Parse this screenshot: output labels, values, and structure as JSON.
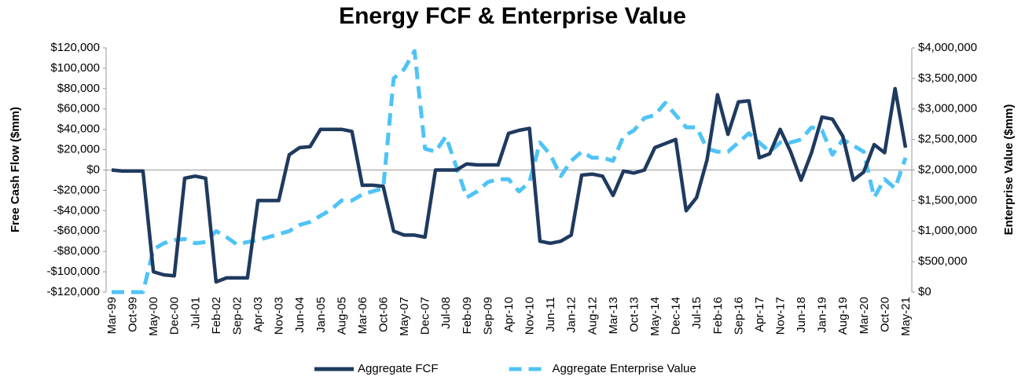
{
  "chart_data": {
    "type": "line",
    "title": "Energy FCF & Enterprise Value",
    "y_label": "Free Cash Flow ($mm)",
    "y2_label": "Enterprise Value ($mm)",
    "categories": [
      "Mar-99",
      null,
      "Oct-99",
      null,
      "May-00",
      null,
      "Dec-00",
      null,
      "Jul-01",
      null,
      "Feb-02",
      null,
      "Sep-02",
      null,
      "Apr-03",
      null,
      "Nov-03",
      null,
      "Jun-04",
      null,
      "Jan-05",
      null,
      "Aug-05",
      null,
      "Mar-06",
      null,
      "Oct-06",
      null,
      "May-07",
      null,
      "Dec-07",
      null,
      "Jul-08",
      null,
      "Feb-09",
      null,
      "Sep-09",
      null,
      "Apr-10",
      null,
      "Nov-10",
      null,
      "Jun-11",
      null,
      "Jan-12",
      null,
      "Aug-12",
      null,
      "Mar-13",
      null,
      "Oct-13",
      null,
      "May-14",
      null,
      "Dec-14",
      null,
      "Jul-15",
      null,
      "Feb-16",
      null,
      "Sep-16",
      null,
      "Apr-17",
      null,
      "Nov-17",
      null,
      "Jun-18",
      null,
      "Jan-19",
      null,
      "Aug-19",
      null,
      "Mar-20",
      null,
      "Oct-20",
      null,
      "May-21"
    ],
    "series": [
      {
        "name": "Aggregate FCF",
        "color": "#1f3a5f",
        "dashed": false,
        "axis": "y",
        "values": [
          0,
          -1000,
          -1000,
          -1000,
          -100000,
          -103000,
          -104000,
          -8000,
          -6000,
          -8000,
          -110000,
          -106000,
          -106000,
          -106000,
          -30000,
          -30000,
          -30000,
          15000,
          22000,
          23000,
          40000,
          40000,
          40000,
          38000,
          -15000,
          -15000,
          -16000,
          -60000,
          -64000,
          -64000,
          -66000,
          0,
          0,
          0,
          6000,
          5000,
          5000,
          5000,
          36000,
          39000,
          41000,
          -70000,
          -72000,
          -70000,
          -64000,
          -5000,
          -4000,
          -6000,
          -25000,
          -1000,
          -3000,
          0,
          22000,
          26000,
          30000,
          -40000,
          -27000,
          10000,
          74000,
          35000,
          67000,
          68000,
          12000,
          16000,
          40000,
          18000,
          -10000,
          17000,
          52000,
          50000,
          33000,
          -10000,
          -2000,
          25000,
          17000,
          80000,
          22000
        ]
      },
      {
        "name": "Aggregate Enterprise Value",
        "color": "#4fc3f7",
        "dashed": true,
        "axis": "y2",
        "values": [
          0,
          0,
          0,
          0,
          700000,
          800000,
          850000,
          870000,
          800000,
          820000,
          1000000,
          900000,
          780000,
          820000,
          850000,
          900000,
          950000,
          1000000,
          1100000,
          1150000,
          1250000,
          1350000,
          1500000,
          1500000,
          1600000,
          1650000,
          1700000,
          3500000,
          3650000,
          3950000,
          2350000,
          2300000,
          2550000,
          2050000,
          1550000,
          1650000,
          1800000,
          1850000,
          1850000,
          1650000,
          1800000,
          2450000,
          2250000,
          1900000,
          2150000,
          2300000,
          2200000,
          2200000,
          2150000,
          2550000,
          2650000,
          2850000,
          2900000,
          3100000,
          2900000,
          2700000,
          2700000,
          2350000,
          2300000,
          2300000,
          2450000,
          2600000,
          2450000,
          2300000,
          2450000,
          2450000,
          2500000,
          2700000,
          2650000,
          2250000,
          2500000,
          2400000,
          2300000,
          1550000,
          1850000,
          1700000,
          2200000
        ]
      }
    ],
    "ylim": [
      -120000,
      120000
    ],
    "yticks": [
      {
        "value": -120000,
        "label": "-$120,000"
      },
      {
        "value": -100000,
        "label": "-$100,000"
      },
      {
        "value": -80000,
        "label": "-$80,000"
      },
      {
        "value": -60000,
        "label": "-$60,000"
      },
      {
        "value": -40000,
        "label": "-$40,000"
      },
      {
        "value": -20000,
        "label": "-$20,000"
      },
      {
        "value": 0,
        "label": "$0"
      },
      {
        "value": 20000,
        "label": "$20,000"
      },
      {
        "value": 40000,
        "label": "$40,000"
      },
      {
        "value": 60000,
        "label": "$60,000"
      },
      {
        "value": 80000,
        "label": "$80,000"
      },
      {
        "value": 100000,
        "label": "$100,000"
      },
      {
        "value": 120000,
        "label": "$120,000"
      }
    ],
    "y2lim": [
      0,
      4000000
    ],
    "y2ticks": [
      {
        "value": 0,
        "label": "$0"
      },
      {
        "value": 500000,
        "label": "$500,000"
      },
      {
        "value": 1000000,
        "label": "$1,000,000"
      },
      {
        "value": 1500000,
        "label": "$1,500,000"
      },
      {
        "value": 2000000,
        "label": "$2,000,000"
      },
      {
        "value": 2500000,
        "label": "$2,500,000"
      },
      {
        "value": 3000000,
        "label": "$3,000,000"
      },
      {
        "value": 3500000,
        "label": "$3,500,000"
      },
      {
        "value": 4000000,
        "label": "$4,000,000"
      }
    ],
    "legend": "bottom"
  }
}
